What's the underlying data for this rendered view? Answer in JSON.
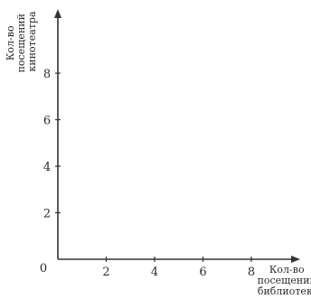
{
  "chart_data": {
    "type": "scatter",
    "title": "",
    "origin_label": "0",
    "xlabel_lines": [
      "Кол-во",
      "посещений",
      "библиотеки"
    ],
    "ylabel_lines": [
      "Кол-во",
      "посещений",
      "кинотеатра"
    ],
    "xlim": [
      0,
      10
    ],
    "ylim": [
      0,
      10
    ],
    "x_ticks": [
      2,
      4,
      6,
      8
    ],
    "y_ticks": [
      2,
      4,
      6,
      8
    ],
    "grid": false,
    "series": []
  }
}
